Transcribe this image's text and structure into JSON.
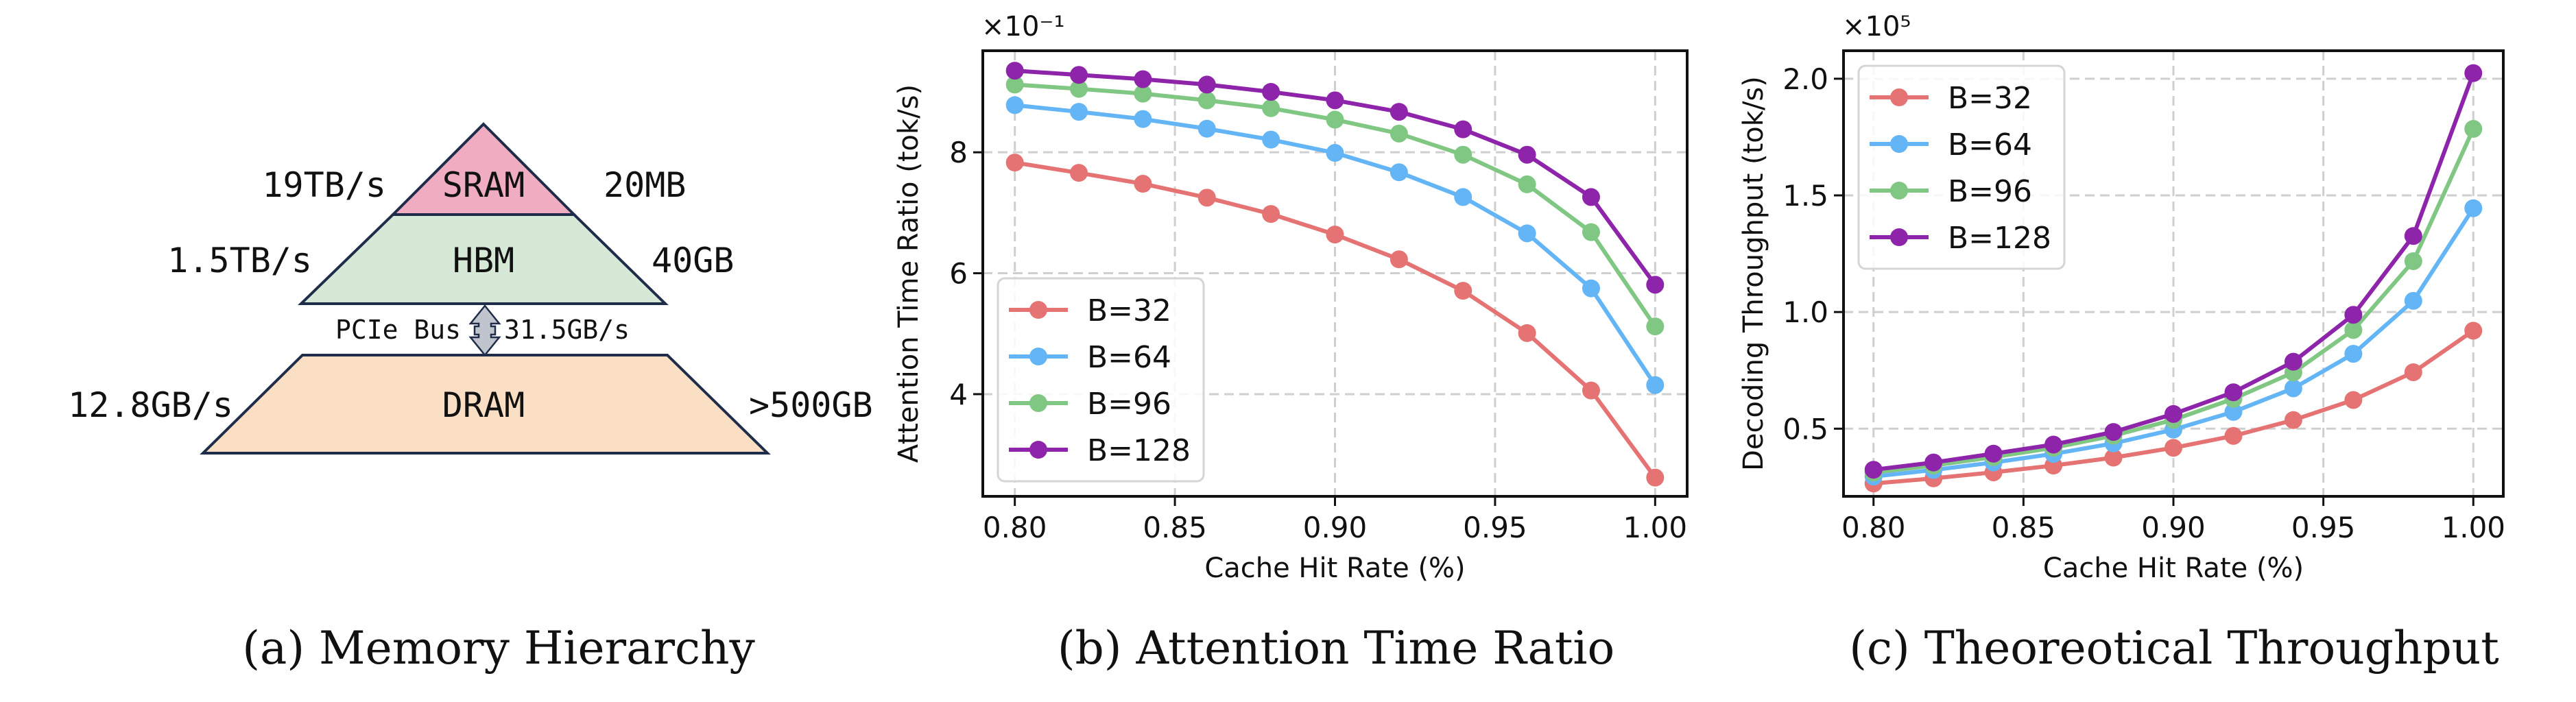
{
  "figure": {
    "panels": [
      {
        "id": "a",
        "caption": "(a) Memory Hierarchy"
      },
      {
        "id": "b",
        "caption": "(b) Attention Time Ratio"
      },
      {
        "id": "c",
        "caption": "(c) Theoreotical Throughput"
      }
    ]
  },
  "memory_hierarchy": {
    "levels": [
      {
        "name": "SRAM",
        "bandwidth": "19TB/s",
        "capacity": "20MB",
        "color": "#f0adc2"
      },
      {
        "name": "HBM",
        "bandwidth": "1.5TB/s",
        "capacity": "40GB",
        "color": "#d6e8d6"
      },
      {
        "name": "DRAM",
        "bandwidth": "12.8GB/s",
        "capacity": ">500GB",
        "color": "#fbdfc4"
      }
    ],
    "link": {
      "name": "PCIe Bus",
      "bandwidth": "31.5GB/s",
      "color": "#c0c4cc"
    },
    "outline_color": "#1f2d4a"
  },
  "chart_data": [
    {
      "type": "line",
      "title": "",
      "xlabel": "Cache Hit Rate (%)",
      "ylabel": "Attention Time Ratio (tok/s)",
      "y_multiplier": "×10⁻¹",
      "x": [
        0.8,
        0.82,
        0.84,
        0.86,
        0.88,
        0.9,
        0.92,
        0.94,
        0.96,
        0.98,
        1.0
      ],
      "xlim": [
        0.79,
        1.01
      ],
      "ylim": [
        2.31,
        9.68
      ],
      "xticks": [
        0.8,
        0.85,
        0.9,
        0.95,
        1.0
      ],
      "xtick_labels": [
        "0.80",
        "0.85",
        "0.90",
        "0.95",
        "1.00"
      ],
      "yticks": [
        4,
        6,
        8
      ],
      "ytick_labels": [
        "4",
        "6",
        "8"
      ],
      "grid": true,
      "legend_position": "lower-left",
      "series": [
        {
          "name": "B=32",
          "color": "#e57373",
          "values": [
            7.83,
            7.66,
            7.48,
            7.25,
            6.98,
            6.64,
            6.23,
            5.71,
            5.01,
            4.06,
            2.62
          ]
        },
        {
          "name": "B=64",
          "color": "#64b5f6",
          "values": [
            8.78,
            8.67,
            8.55,
            8.39,
            8.21,
            7.99,
            7.67,
            7.26,
            6.66,
            5.75,
            4.15
          ]
        },
        {
          "name": "B=96",
          "color": "#81c784",
          "values": [
            9.12,
            9.05,
            8.97,
            8.86,
            8.73,
            8.54,
            8.31,
            7.96,
            7.47,
            6.68,
            5.12
          ]
        },
        {
          "name": "B=128",
          "color": "#8e24aa",
          "values": [
            9.35,
            9.28,
            9.21,
            9.12,
            9.0,
            8.86,
            8.67,
            8.38,
            7.96,
            7.26,
            5.81
          ]
        }
      ]
    },
    {
      "type": "line",
      "title": "",
      "xlabel": "Cache Hit Rate (%)",
      "ylabel": "Decoding Throughput (tok/s)",
      "y_multiplier": "×10⁵",
      "x": [
        0.8,
        0.82,
        0.84,
        0.86,
        0.88,
        0.9,
        0.92,
        0.94,
        0.96,
        0.98,
        1.0
      ],
      "xlim": [
        0.79,
        1.01
      ],
      "ylim": [
        0.21,
        2.12
      ],
      "xticks": [
        0.8,
        0.85,
        0.9,
        0.95,
        1.0
      ],
      "xtick_labels": [
        "0.80",
        "0.85",
        "0.90",
        "0.95",
        "1.00"
      ],
      "yticks": [
        0.5,
        1.0,
        1.5,
        2.0
      ],
      "ytick_labels": [
        "0.5",
        "1.0",
        "1.5",
        "2.0"
      ],
      "grid": true,
      "legend_position": "upper-left",
      "series": [
        {
          "name": "B=32",
          "color": "#e57373",
          "values": [
            0.265,
            0.287,
            0.313,
            0.342,
            0.376,
            0.418,
            0.469,
            0.537,
            0.623,
            0.742,
            0.92
          ]
        },
        {
          "name": "B=64",
          "color": "#64b5f6",
          "values": [
            0.295,
            0.323,
            0.355,
            0.392,
            0.437,
            0.496,
            0.572,
            0.673,
            0.821,
            1.048,
            1.445
          ]
        },
        {
          "name": "B=96",
          "color": "#81c784",
          "values": [
            0.312,
            0.342,
            0.378,
            0.418,
            0.47,
            0.538,
            0.628,
            0.741,
            0.923,
            1.218,
            1.785
          ]
        },
        {
          "name": "B=128",
          "color": "#8e24aa",
          "values": [
            0.324,
            0.355,
            0.393,
            0.432,
            0.486,
            0.563,
            0.656,
            0.787,
            0.988,
            1.326,
            2.024
          ]
        }
      ]
    }
  ]
}
